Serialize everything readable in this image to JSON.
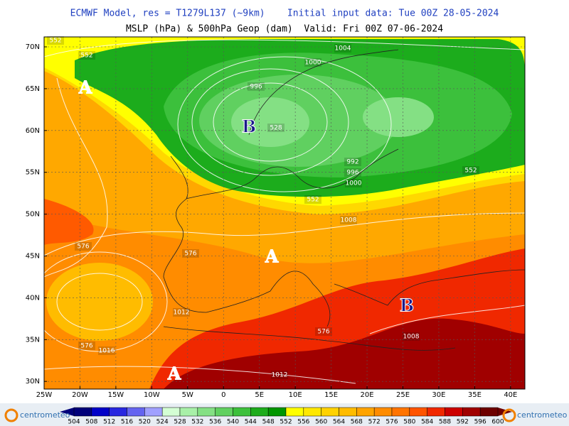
{
  "map": {
    "title_line1": "ECMWF Model, res = T1279L137 (~9km)    Initial input data: Tue 00Z 28-05-2024",
    "title_line2": "MSLP (hPa) & 500hPa Geop (dam)  Valid: Fri 00Z 07-06-2024",
    "lat_labels": [
      "70N",
      "65N",
      "60N",
      "55N",
      "50N",
      "45N",
      "40N",
      "35N",
      "30N"
    ],
    "lon_labels": [
      "25W",
      "20W",
      "15W",
      "10W",
      "5W",
      "0",
      "5E",
      "10E",
      "15E",
      "20E",
      "25E",
      "30E",
      "35E",
      "40E"
    ],
    "contour_labels": [
      "552",
      "552",
      "1004",
      "1000",
      "996",
      "528",
      "992",
      "996",
      "1000",
      "552",
      "552",
      "1008",
      "576",
      "576",
      "1012",
      "576",
      "1008",
      "576",
      "1016",
      "1012"
    ],
    "pressure_centers": [
      "A",
      "B",
      "A",
      "B",
      "A"
    ],
    "logo": "centrometeo",
    "colorbar": {
      "ticks": [
        504,
        508,
        512,
        516,
        520,
        524,
        528,
        532,
        536,
        540,
        544,
        548,
        552,
        556,
        560,
        564,
        568,
        572,
        576,
        580,
        584,
        588,
        592,
        596,
        600
      ],
      "colors": [
        "#00007a",
        "#0000c8",
        "#2828e0",
        "#6464f0",
        "#a0a0ff",
        "#d4ffd4",
        "#a8f0a8",
        "#84e084",
        "#60d060",
        "#3cc03c",
        "#1cac1c",
        "#009600",
        "#ffff00",
        "#ffe800",
        "#ffd200",
        "#ffbc00",
        "#ffa400",
        "#ff8c00",
        "#ff7400",
        "#ff5400",
        "#f02800",
        "#cc0000",
        "#a00000",
        "#6e0000"
      ]
    }
  }
}
